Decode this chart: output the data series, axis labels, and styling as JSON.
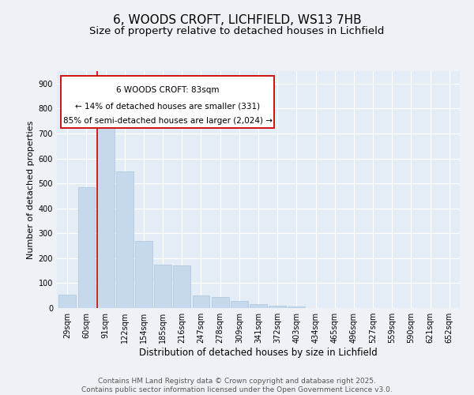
{
  "title": "6, WOODS CROFT, LICHFIELD, WS13 7HB",
  "subtitle": "Size of property relative to detached houses in Lichfield",
  "xlabel": "Distribution of detached houses by size in Lichfield",
  "ylabel": "Number of detached properties",
  "categories": [
    "29sqm",
    "60sqm",
    "91sqm",
    "122sqm",
    "154sqm",
    "185sqm",
    "216sqm",
    "247sqm",
    "278sqm",
    "309sqm",
    "341sqm",
    "372sqm",
    "403sqm",
    "434sqm",
    "465sqm",
    "496sqm",
    "527sqm",
    "559sqm",
    "590sqm",
    "621sqm",
    "652sqm"
  ],
  "values": [
    55,
    483,
    730,
    548,
    270,
    175,
    170,
    50,
    45,
    28,
    15,
    10,
    5,
    0,
    0,
    0,
    0,
    0,
    0,
    0,
    0
  ],
  "bar_color": "#c6d9ec",
  "bar_edge_color": "#a8c4de",
  "vline_x_index": 2,
  "vline_color": "#cc0000",
  "annotation_line1": "6 WOODS CROFT: 83sqm",
  "annotation_line2": "← 14% of detached houses are smaller (331)",
  "annotation_line3": "85% of semi-detached houses are larger (2,024) →",
  "annotation_box_edge_color": "#cc0000",
  "annotation_fontsize": 7.5,
  "title_fontsize": 11,
  "subtitle_fontsize": 9.5,
  "xlabel_fontsize": 8.5,
  "ylabel_fontsize": 8,
  "tick_fontsize": 7,
  "footer_text": "Contains HM Land Registry data © Crown copyright and database right 2025.\nContains public sector information licensed under the Open Government Licence v3.0.",
  "footer_fontsize": 6.5,
  "ylim": [
    0,
    950
  ],
  "yticks": [
    0,
    100,
    200,
    300,
    400,
    500,
    600,
    700,
    800,
    900
  ],
  "background_color": "#eef2f7",
  "plot_bg_color": "#e4ecf5"
}
